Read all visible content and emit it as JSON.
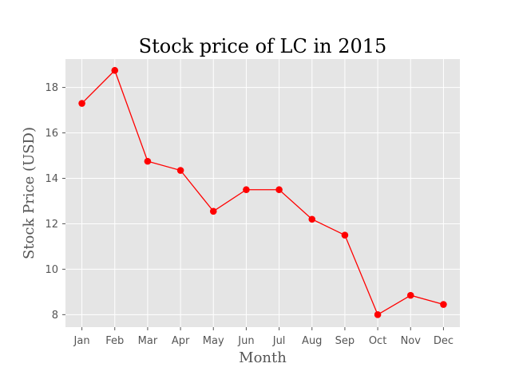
{
  "chart_data": {
    "type": "line",
    "title": "Stock price of LC in 2015",
    "xlabel": "Month",
    "ylabel": "Stock Price (USD)",
    "categories": [
      "Jan",
      "Feb",
      "Mar",
      "Apr",
      "May",
      "Jun",
      "Jul",
      "Aug",
      "Sep",
      "Oct",
      "Nov",
      "Dec"
    ],
    "series": [
      {
        "values": [
          17.3,
          18.75,
          14.75,
          14.35,
          12.55,
          13.5,
          13.5,
          12.2,
          11.5,
          8.0,
          8.85,
          8.45
        ],
        "color": "#ff0000"
      }
    ],
    "ylim": [
      7.45,
      19.25
    ],
    "yticks": [
      8,
      10,
      12,
      14,
      16,
      18
    ],
    "grid": true,
    "legend": "none",
    "background_color": "#e5e5e5",
    "grid_color": "#ffffff"
  }
}
